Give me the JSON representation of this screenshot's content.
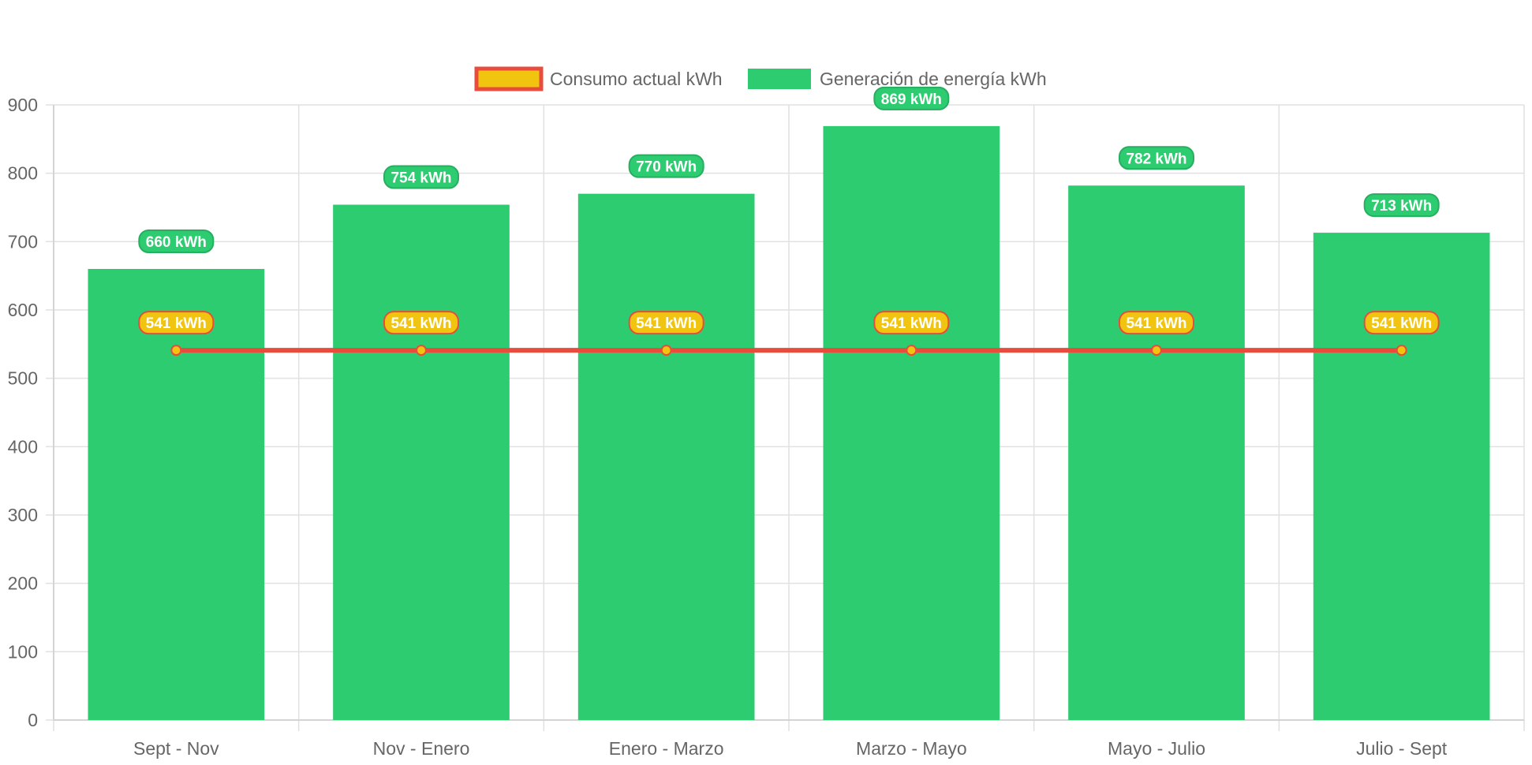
{
  "chart_data": {
    "type": "bar",
    "categories": [
      "Sept - Nov",
      "Nov - Enero",
      "Enero - Marzo",
      "Marzo - Mayo",
      "Mayo - Julio",
      "Julio - Sept"
    ],
    "series": [
      {
        "name": "Consumo actual kWh",
        "type": "line",
        "values": [
          541,
          541,
          541,
          541,
          541,
          541
        ],
        "data_labels": [
          "541 kWh",
          "541 kWh",
          "541 kWh",
          "541 kWh",
          "541 kWh",
          "541 kWh"
        ],
        "color": "#e74c3c",
        "fill_color": "#f1c40f"
      },
      {
        "name": "Generación de energía kWh",
        "type": "bar",
        "values": [
          660,
          754,
          770,
          869,
          782,
          713
        ],
        "data_labels": [
          "660 kWh",
          "754 kWh",
          "770 kWh",
          "869 kWh",
          "782 kWh",
          "713 kWh"
        ],
        "color": "#2ecc71",
        "label_border": "#27ae60"
      }
    ],
    "ylim": [
      0,
      900
    ],
    "yticks": [
      "0",
      "100",
      "200",
      "300",
      "400",
      "500",
      "600",
      "700",
      "800",
      "900"
    ],
    "grid": true,
    "legend": "top-center",
    "xlabel": "",
    "ylabel": "",
    "title": ""
  }
}
